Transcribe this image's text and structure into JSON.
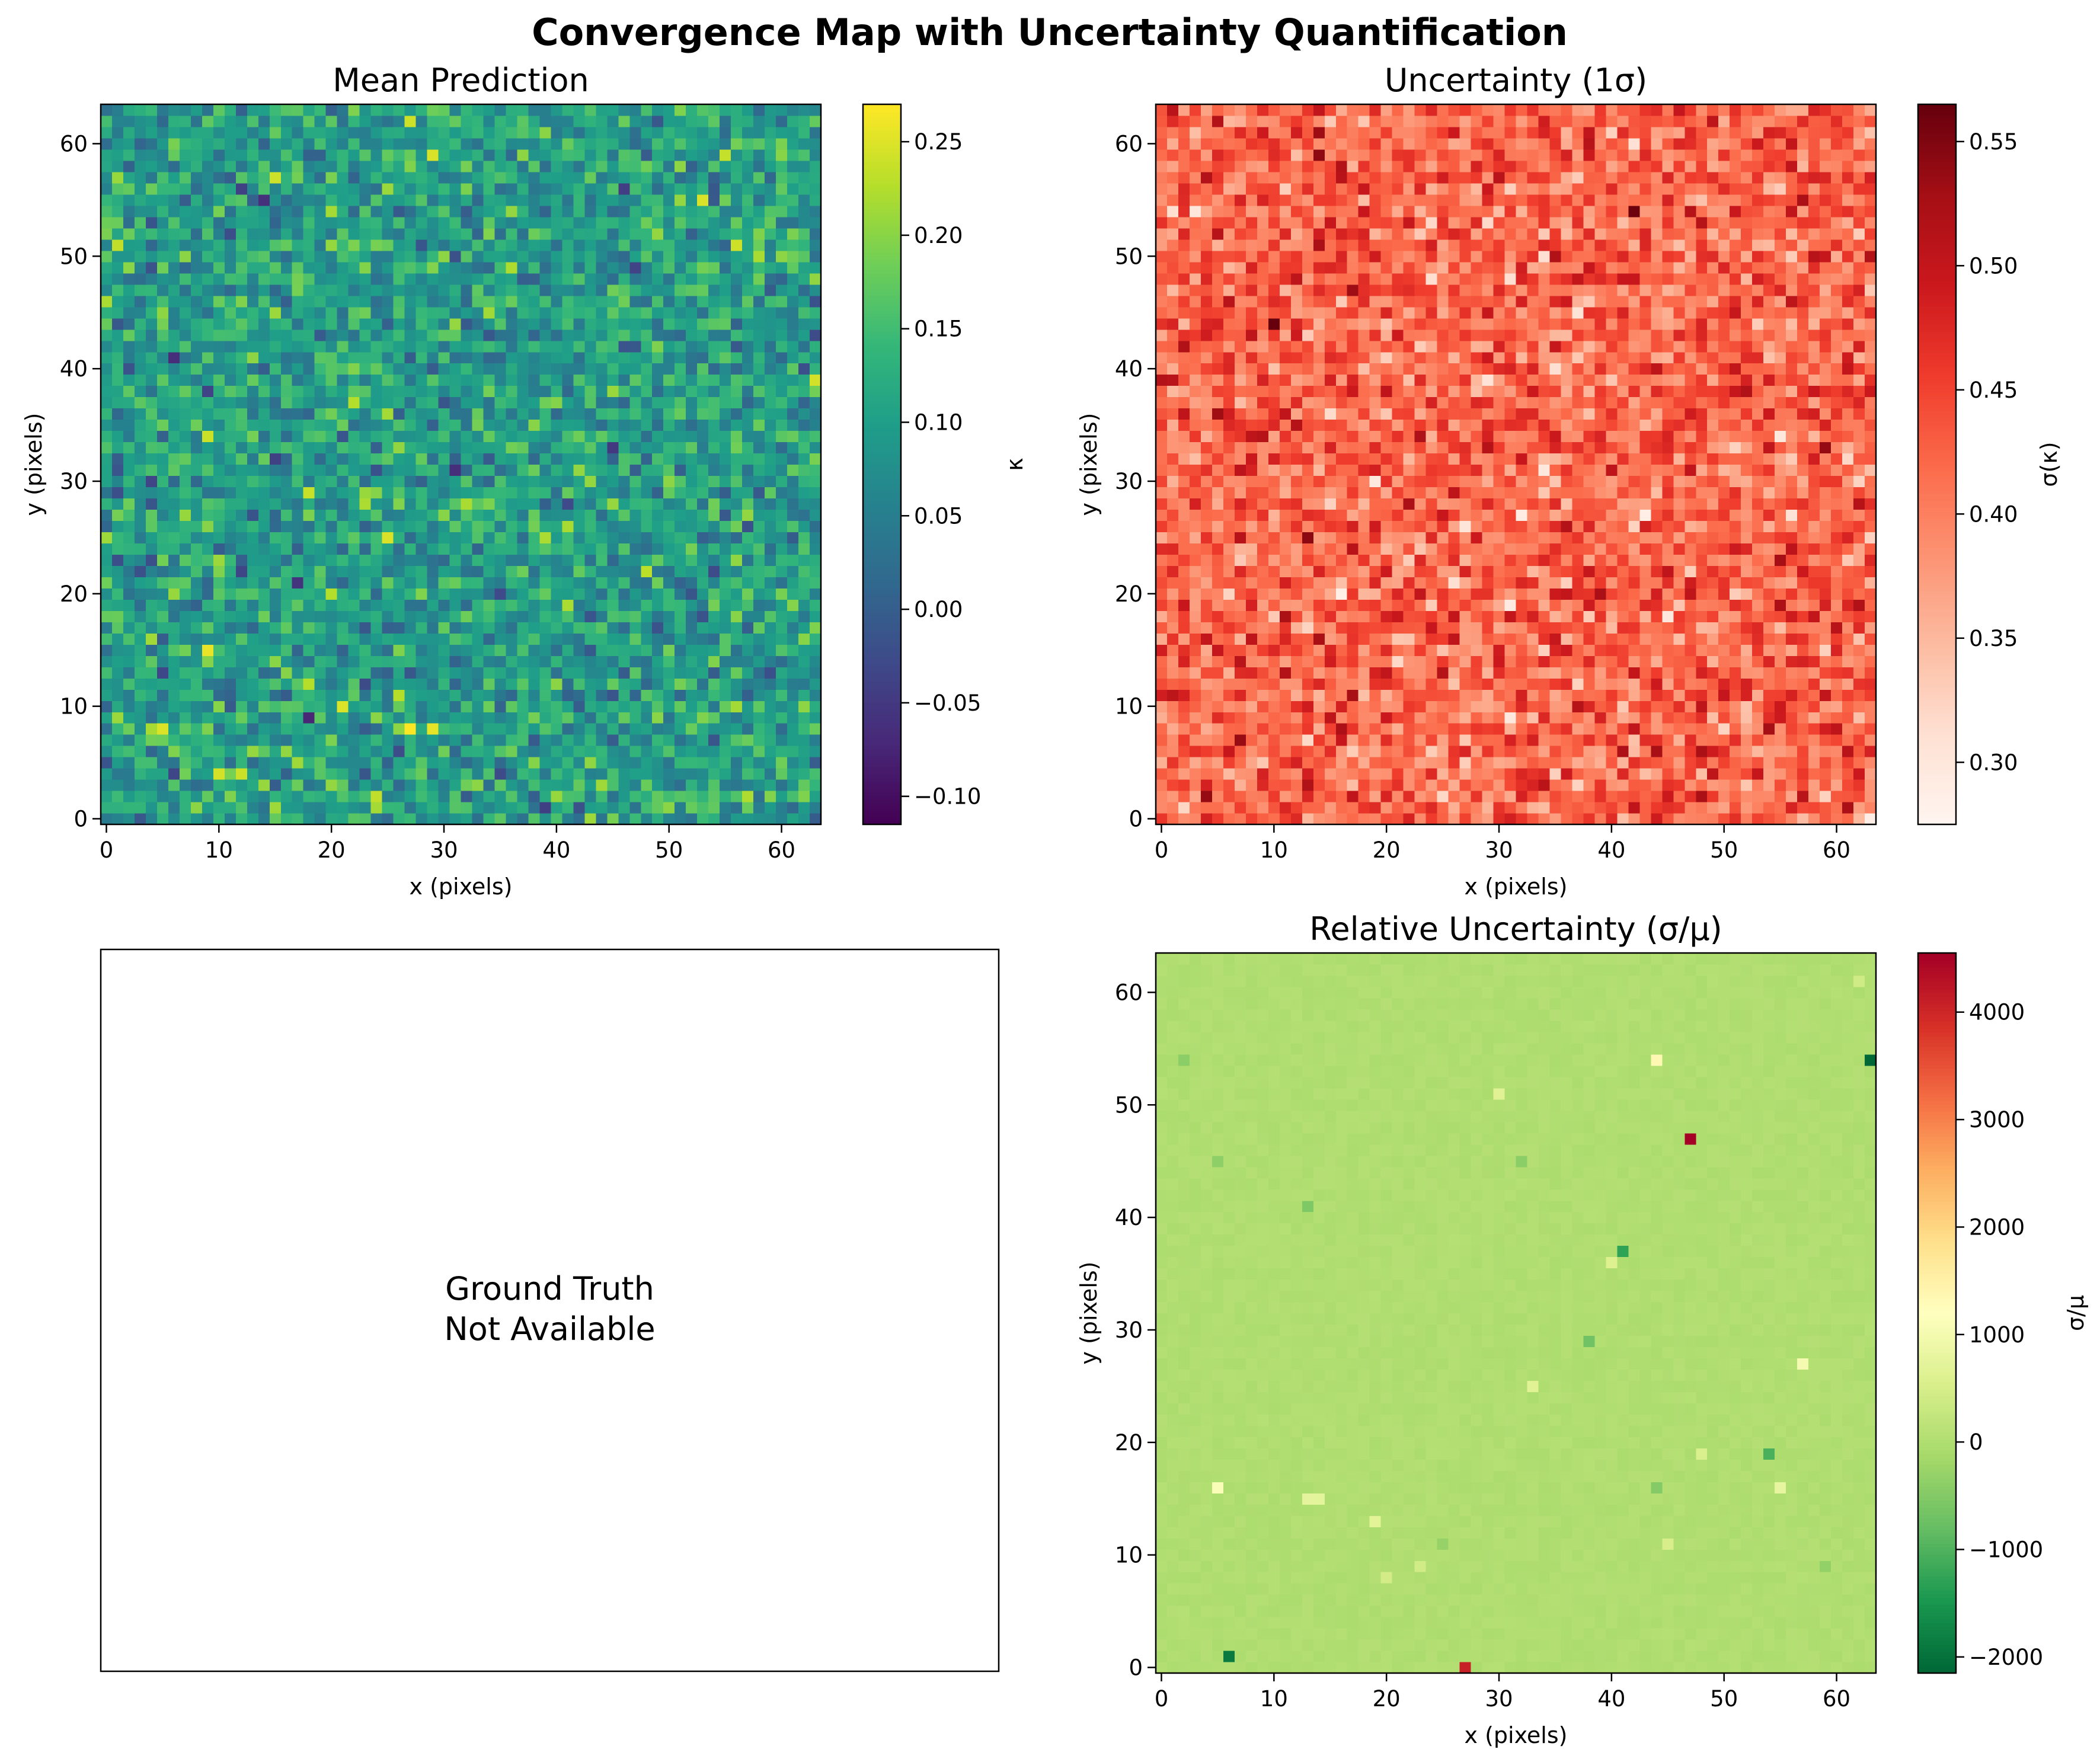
{
  "figure": {
    "title": "Convergence Map with Uncertainty Quantification"
  },
  "chart_data": [
    {
      "type": "heatmap",
      "title": "Mean Prediction",
      "xlabel": "x (pixels)",
      "ylabel": "y (pixels)",
      "grid_size": [
        64,
        64
      ],
      "xlim": [
        -0.5,
        63.5
      ],
      "ylim": [
        -0.5,
        63.5
      ],
      "xticks": [
        0,
        10,
        20,
        30,
        40,
        50,
        60
      ],
      "yticks": [
        0,
        10,
        20,
        30,
        40,
        50,
        60
      ],
      "colormap": "viridis",
      "colorbar": {
        "label": "κ",
        "range": [
          -0.115,
          0.27
        ],
        "ticks": [
          -0.1,
          -0.05,
          0.0,
          0.05,
          0.1,
          0.15,
          0.2,
          0.25
        ],
        "tick_labels": [
          "−0.10",
          "−0.05",
          "0.00",
          "0.05",
          "0.10",
          "0.15",
          "0.20",
          "0.25"
        ]
      },
      "value_distribution": {
        "mean": 0.1,
        "std": 0.05,
        "min": -0.115,
        "max": 0.27
      }
    },
    {
      "type": "heatmap",
      "title": "Uncertainty (1σ)",
      "xlabel": "x (pixels)",
      "ylabel": "y (pixels)",
      "grid_size": [
        64,
        64
      ],
      "xlim": [
        -0.5,
        63.5
      ],
      "ylim": [
        -0.5,
        63.5
      ],
      "xticks": [
        0,
        10,
        20,
        30,
        40,
        50,
        60
      ],
      "yticks": [
        0,
        10,
        20,
        30,
        40,
        50,
        60
      ],
      "colormap": "Reds",
      "colorbar": {
        "label": "σ(κ)",
        "range": [
          0.275,
          0.565
        ],
        "ticks": [
          0.3,
          0.35,
          0.4,
          0.45,
          0.5,
          0.55
        ],
        "tick_labels": [
          "0.30",
          "0.35",
          "0.40",
          "0.45",
          "0.50",
          "0.55"
        ]
      },
      "value_distribution": {
        "mean": 0.42,
        "std": 0.04,
        "min": 0.275,
        "max": 0.565
      }
    },
    {
      "type": "table",
      "title": "",
      "note": "Ground Truth\nNot Available"
    },
    {
      "type": "heatmap",
      "title": "Relative Uncertainty (σ/μ)",
      "xlabel": "x (pixels)",
      "ylabel": "y (pixels)",
      "grid_size": [
        64,
        64
      ],
      "xlim": [
        -0.5,
        63.5
      ],
      "ylim": [
        -0.5,
        63.5
      ],
      "xticks": [
        0,
        10,
        20,
        30,
        40,
        50,
        60
      ],
      "yticks": [
        0,
        10,
        20,
        30,
        40,
        50,
        60
      ],
      "colormap": "RdYlGn_r",
      "colorbar": {
        "label": "σ/μ",
        "range": [
          -2150,
          4550
        ],
        "ticks": [
          -2000,
          -1000,
          0,
          1000,
          2000,
          3000,
          4000
        ],
        "tick_labels": [
          "−2000",
          "−1000",
          "0",
          "1000",
          "2000",
          "3000",
          "4000"
        ]
      },
      "value_distribution": {
        "typical_range": [
          -60,
          60
        ]
      },
      "outliers": [
        {
          "x": 47,
          "y": 47,
          "value": 4550
        },
        {
          "x": 27,
          "y": 0,
          "value": 4100
        },
        {
          "x": 63,
          "y": 54,
          "value": -2150
        },
        {
          "x": 6,
          "y": 1,
          "value": -1900
        },
        {
          "x": 41,
          "y": 37,
          "value": -1300
        },
        {
          "x": 54,
          "y": 19,
          "value": -1050
        },
        {
          "x": 38,
          "y": 29,
          "value": -700
        },
        {
          "x": 13,
          "y": 41,
          "value": -550
        },
        {
          "x": 44,
          "y": 16,
          "value": -500
        },
        {
          "x": 32,
          "y": 45,
          "value": -420
        },
        {
          "x": 5,
          "y": 45,
          "value": -380
        },
        {
          "x": 2,
          "y": 54,
          "value": -420
        },
        {
          "x": 59,
          "y": 9,
          "value": -350
        },
        {
          "x": 25,
          "y": 11,
          "value": -300
        },
        {
          "x": 44,
          "y": 54,
          "value": 1350
        },
        {
          "x": 5,
          "y": 16,
          "value": 1100
        },
        {
          "x": 57,
          "y": 27,
          "value": 1000
        },
        {
          "x": 55,
          "y": 16,
          "value": 800
        },
        {
          "x": 13,
          "y": 15,
          "value": 750
        },
        {
          "x": 14,
          "y": 15,
          "value": 720
        },
        {
          "x": 19,
          "y": 13,
          "value": 700
        },
        {
          "x": 30,
          "y": 51,
          "value": 650
        },
        {
          "x": 33,
          "y": 25,
          "value": 650
        },
        {
          "x": 40,
          "y": 36,
          "value": 600
        },
        {
          "x": 48,
          "y": 19,
          "value": 550
        },
        {
          "x": 45,
          "y": 11,
          "value": 500
        },
        {
          "x": 20,
          "y": 8,
          "value": 450
        },
        {
          "x": 23,
          "y": 9,
          "value": 420
        },
        {
          "x": 62,
          "y": 61,
          "value": 400
        }
      ]
    }
  ]
}
